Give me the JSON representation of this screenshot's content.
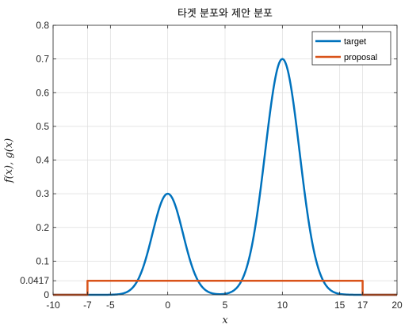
{
  "chart_data": {
    "type": "line",
    "title": "타겟 분포와 제안 분포",
    "xlabel": "x",
    "ylabel": "f(x), g(x)",
    "xlim": [
      -10,
      20
    ],
    "ylim": [
      0,
      0.8
    ],
    "x_ticks": [
      -10,
      -7,
      -5,
      0,
      5,
      10,
      15,
      17,
      20
    ],
    "x_tick_labels": [
      "-10",
      "-7",
      "-5",
      "0",
      "5",
      "10",
      "15",
      "17",
      "20"
    ],
    "y_ticks": [
      0,
      0.0417,
      0.1,
      0.2,
      0.3,
      0.4,
      0.5,
      0.6,
      0.7,
      0.8
    ],
    "y_tick_labels": [
      "0",
      "0.0417",
      "0.1",
      "0.2",
      "0.3",
      "0.4",
      "0.5",
      "0.6",
      "0.7",
      "0.8"
    ],
    "grid": true,
    "legend_position": "top-right",
    "series": [
      {
        "name": "target",
        "color": "#0072BD",
        "form": "sum of two Gaussian bumps",
        "peaks": [
          {
            "x": 0,
            "y": 0.3,
            "sigma": 1.33
          },
          {
            "x": 10,
            "y": 0.7,
            "sigma": 1.5
          }
        ]
      },
      {
        "name": "proposal",
        "color": "#D95319",
        "form": "uniform",
        "support": [
          -7,
          17
        ],
        "value": 0.0417
      }
    ]
  }
}
